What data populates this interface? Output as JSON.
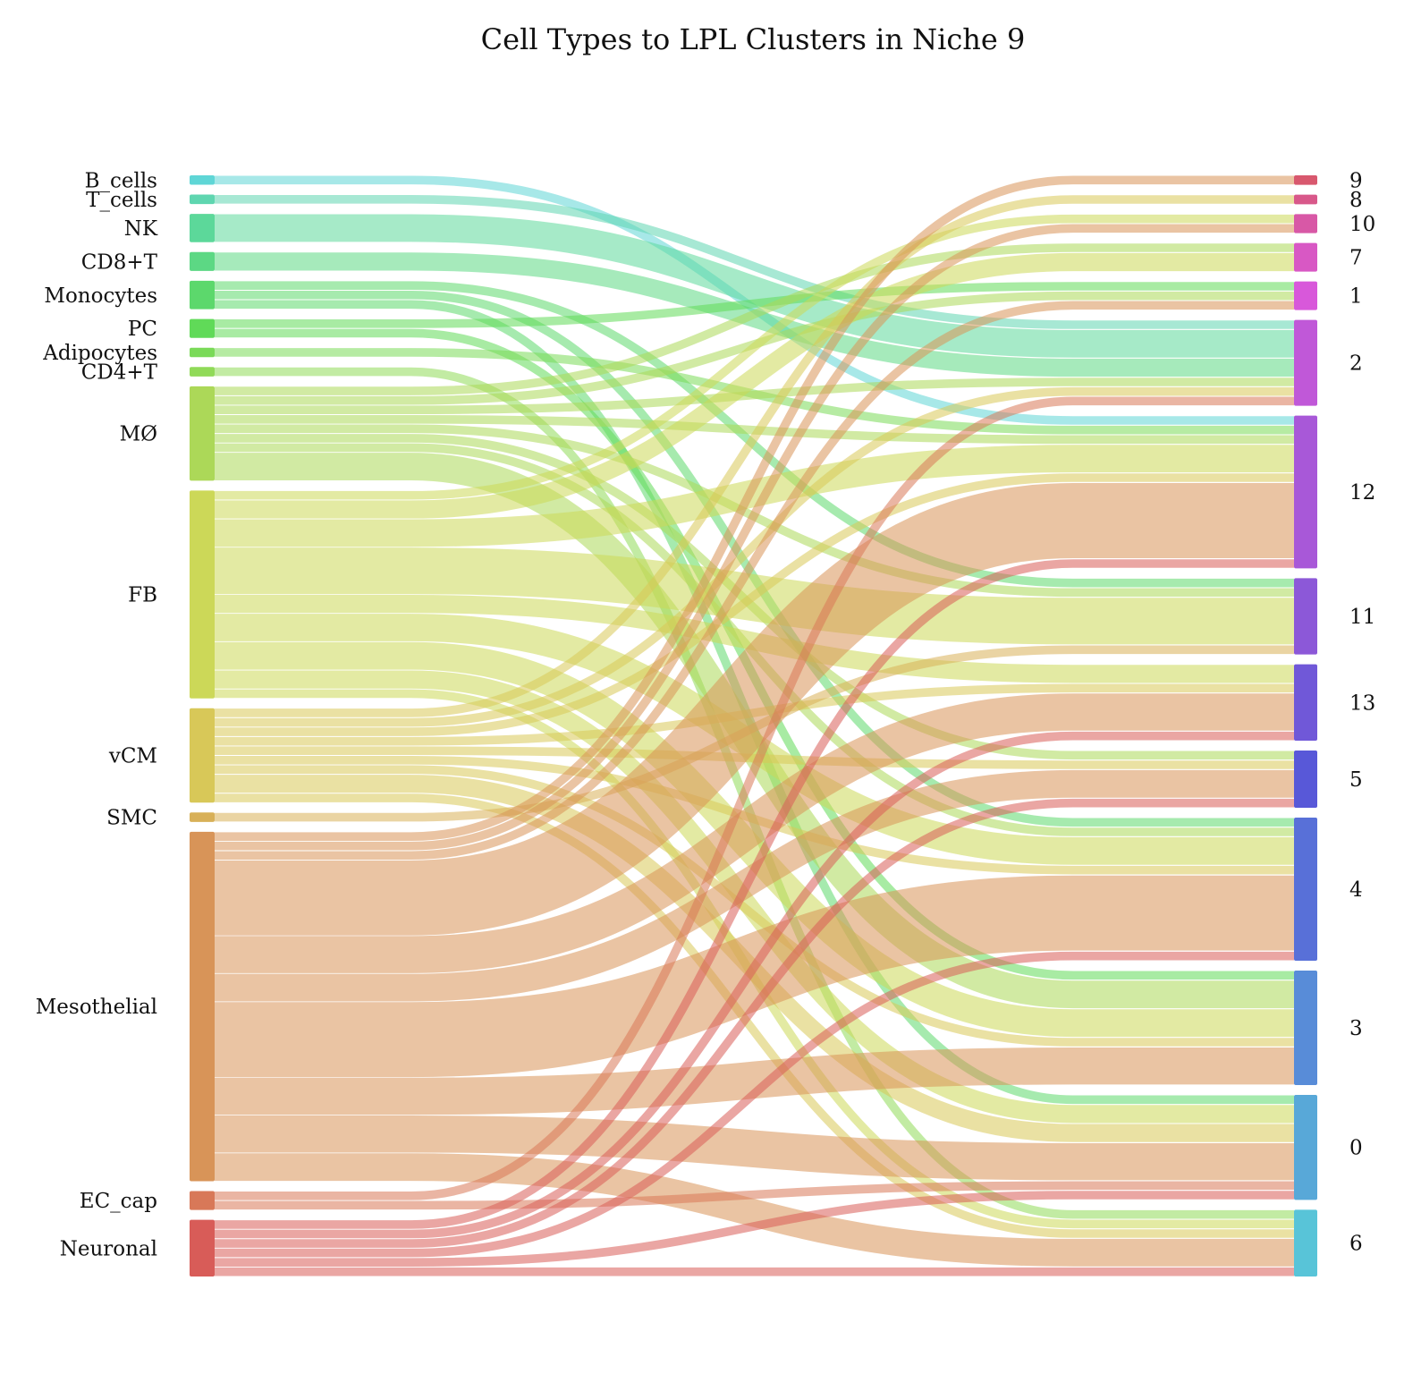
{
  "chart_data": {
    "type": "sankey",
    "title": "Cell Types to LPL Clusters in Niche 9",
    "sources": [
      {
        "name": "B_cells",
        "color": "#5fd6d6"
      },
      {
        "name": "T_cells",
        "color": "#5fd6b0"
      },
      {
        "name": "NK",
        "color": "#5cd89a"
      },
      {
        "name": "CD8+T",
        "color": "#5cd884"
      },
      {
        "name": "Monocytes",
        "color": "#5cd86c"
      },
      {
        "name": "PC",
        "color": "#60da58"
      },
      {
        "name": "Adipocytes",
        "color": "#7ada58"
      },
      {
        "name": "CD4+T",
        "color": "#90da58"
      },
      {
        "name": "MØ",
        "color": "#acd858"
      },
      {
        "name": "FB",
        "color": "#ccd858"
      },
      {
        "name": "vCM",
        "color": "#d8c858"
      },
      {
        "name": "SMC",
        "color": "#d8b058"
      },
      {
        "name": "Mesothelial",
        "color": "#d89458"
      },
      {
        "name": "EC_cap",
        "color": "#d87858"
      },
      {
        "name": "Neuronal",
        "color": "#d85c58"
      }
    ],
    "targets": [
      {
        "name": "9",
        "color": "#d8586e"
      },
      {
        "name": "8",
        "color": "#d8588a"
      },
      {
        "name": "10",
        "color": "#d858a6"
      },
      {
        "name": "7",
        "color": "#d858c4"
      },
      {
        "name": "1",
        "color": "#d858da"
      },
      {
        "name": "2",
        "color": "#c058d8"
      },
      {
        "name": "12",
        "color": "#a858d8"
      },
      {
        "name": "11",
        "color": "#8c58d8"
      },
      {
        "name": "13",
        "color": "#7058d8"
      },
      {
        "name": "5",
        "color": "#5858d8"
      },
      {
        "name": "4",
        "color": "#5870d8"
      },
      {
        "name": "3",
        "color": "#588cd8"
      },
      {
        "name": "0",
        "color": "#58a8d8"
      },
      {
        "name": "6",
        "color": "#58c4d8"
      }
    ],
    "links": [
      {
        "source": "B_cells",
        "target": "12",
        "value": 1
      },
      {
        "source": "T_cells",
        "target": "2",
        "value": 1
      },
      {
        "source": "NK",
        "target": "2",
        "value": 3
      },
      {
        "source": "CD8+T",
        "target": "2",
        "value": 2
      },
      {
        "source": "Monocytes",
        "target": "11",
        "value": 1
      },
      {
        "source": "Monocytes",
        "target": "4",
        "value": 1
      },
      {
        "source": "Monocytes",
        "target": "0",
        "value": 1
      },
      {
        "source": "PC",
        "target": "1",
        "value": 1
      },
      {
        "source": "PC",
        "target": "3",
        "value": 1
      },
      {
        "source": "Adipocytes",
        "target": "12",
        "value": 1
      },
      {
        "source": "CD4+T",
        "target": "6",
        "value": 1
      },
      {
        "source": "MØ",
        "target": "7",
        "value": 1
      },
      {
        "source": "MØ",
        "target": "1",
        "value": 1
      },
      {
        "source": "MØ",
        "target": "2",
        "value": 1
      },
      {
        "source": "MØ",
        "target": "12",
        "value": 1
      },
      {
        "source": "MØ",
        "target": "11",
        "value": 1
      },
      {
        "source": "MØ",
        "target": "5",
        "value": 1
      },
      {
        "source": "MØ",
        "target": "4",
        "value": 1
      },
      {
        "source": "MØ",
        "target": "3",
        "value": 3
      },
      {
        "source": "FB",
        "target": "10",
        "value": 1
      },
      {
        "source": "FB",
        "target": "7",
        "value": 2
      },
      {
        "source": "FB",
        "target": "12",
        "value": 3
      },
      {
        "source": "FB",
        "target": "11",
        "value": 5
      },
      {
        "source": "FB",
        "target": "13",
        "value": 2
      },
      {
        "source": "FB",
        "target": "4",
        "value": 3
      },
      {
        "source": "FB",
        "target": "3",
        "value": 3
      },
      {
        "source": "FB",
        "target": "0",
        "value": 2
      },
      {
        "source": "FB",
        "target": "6",
        "value": 1
      },
      {
        "source": "vCM",
        "target": "8",
        "value": 1
      },
      {
        "source": "vCM",
        "target": "2",
        "value": 1
      },
      {
        "source": "vCM",
        "target": "12",
        "value": 1
      },
      {
        "source": "vCM",
        "target": "13",
        "value": 1
      },
      {
        "source": "vCM",
        "target": "5",
        "value": 1
      },
      {
        "source": "vCM",
        "target": "4",
        "value": 1
      },
      {
        "source": "vCM",
        "target": "3",
        "value": 1
      },
      {
        "source": "vCM",
        "target": "0",
        "value": 2
      },
      {
        "source": "vCM",
        "target": "6",
        "value": 1
      },
      {
        "source": "SMC",
        "target": "11",
        "value": 1
      },
      {
        "source": "Mesothelial",
        "target": "9",
        "value": 1
      },
      {
        "source": "Mesothelial",
        "target": "10",
        "value": 1
      },
      {
        "source": "Mesothelial",
        "target": "1",
        "value": 1
      },
      {
        "source": "Mesothelial",
        "target": "12",
        "value": 8
      },
      {
        "source": "Mesothelial",
        "target": "13",
        "value": 4
      },
      {
        "source": "Mesothelial",
        "target": "5",
        "value": 3
      },
      {
        "source": "Mesothelial",
        "target": "4",
        "value": 8
      },
      {
        "source": "Mesothelial",
        "target": "3",
        "value": 4
      },
      {
        "source": "Mesothelial",
        "target": "0",
        "value": 4
      },
      {
        "source": "Mesothelial",
        "target": "6",
        "value": 3
      },
      {
        "source": "EC_cap",
        "target": "2",
        "value": 1
      },
      {
        "source": "EC_cap",
        "target": "0",
        "value": 1
      },
      {
        "source": "Neuronal",
        "target": "12",
        "value": 1
      },
      {
        "source": "Neuronal",
        "target": "13",
        "value": 1
      },
      {
        "source": "Neuronal",
        "target": "5",
        "value": 1
      },
      {
        "source": "Neuronal",
        "target": "4",
        "value": 1
      },
      {
        "source": "Neuronal",
        "target": "0",
        "value": 1
      },
      {
        "source": "Neuronal",
        "target": "6",
        "value": 1
      }
    ]
  }
}
